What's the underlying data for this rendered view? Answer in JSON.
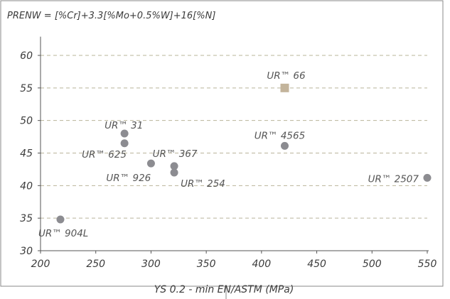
{
  "chart_data": {
    "type": "scatter",
    "title": "PRENW = [%Cr]+3.3[%Mo+0.5%W]+16[%N]",
    "xlabel": "YS 0.2 - min EN/ASTM (MPa)",
    "ylabel": "",
    "xlim": [
      200,
      550
    ],
    "ylim": [
      30,
      62
    ],
    "xticks": [
      200,
      250,
      300,
      350,
      400,
      450,
      500,
      550
    ],
    "yticks": [
      30,
      35,
      40,
      45,
      50,
      55,
      60
    ],
    "grid": "horizontal dashed",
    "points": [
      {
        "label": "UR™ 904L",
        "x": 218,
        "y": 34.8,
        "marker": "circle",
        "label_pos": "below-left"
      },
      {
        "label": "UR™ 625",
        "x": 276,
        "y": 46.5,
        "marker": "circle",
        "label_pos": "below-left"
      },
      {
        "label": "UR™ 31",
        "x": 276,
        "y": 48.0,
        "marker": "circle",
        "label_pos": "above-left"
      },
      {
        "label": "UR™ 926",
        "x": 300,
        "y": 43.4,
        "marker": "circle",
        "label_pos": "below-left"
      },
      {
        "label": "UR™ 367",
        "x": 321,
        "y": 43.0,
        "marker": "circle",
        "label_pos": "above"
      },
      {
        "label": "UR™ 254",
        "x": 321,
        "y": 42.0,
        "marker": "circle",
        "label_pos": "below-right"
      },
      {
        "label": "UR™ 4565",
        "x": 421,
        "y": 46.1,
        "marker": "circle",
        "label_pos": "above"
      },
      {
        "label": "UR™ 66",
        "x": 421,
        "y": 55.0,
        "marker": "square",
        "label_pos": "above"
      },
      {
        "label": "UR™ 2507",
        "x": 550,
        "y": 41.2,
        "marker": "circle",
        "label_pos": "left"
      }
    ],
    "colors": {
      "circle": "#8c8c91",
      "square": "#c3b49b",
      "grid": "#b9b49a",
      "axis": "#555555",
      "frame": "#888888"
    }
  }
}
